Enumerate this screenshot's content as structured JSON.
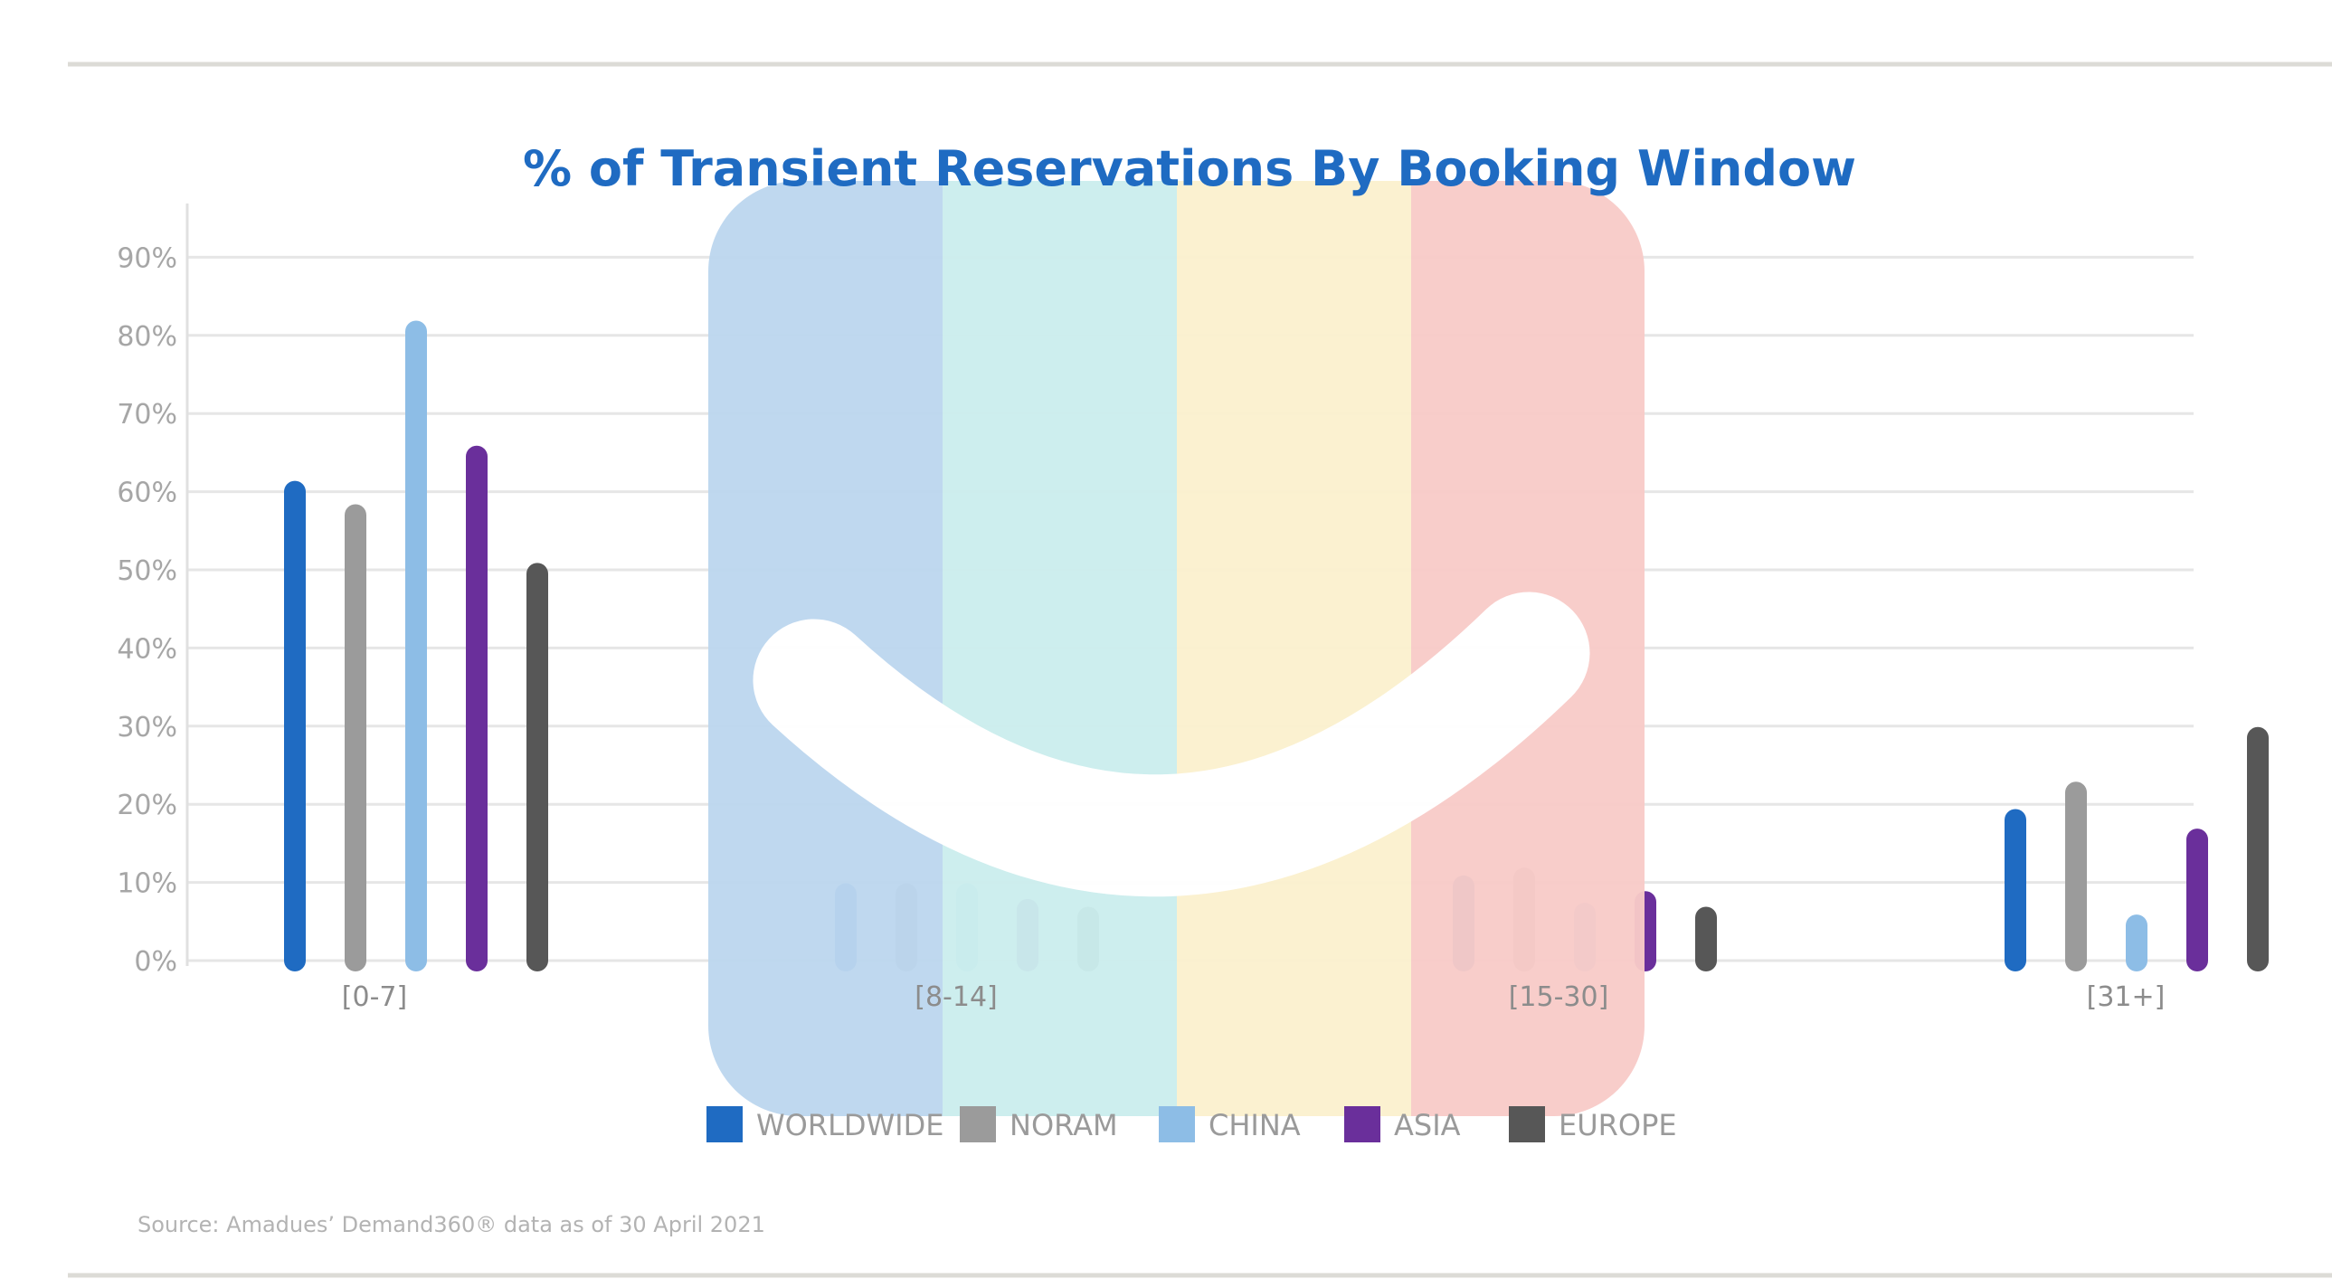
{
  "chart_data": {
    "type": "bar",
    "title": "% of Transient Reservations By Booking Window",
    "xlabel": "",
    "ylabel": "",
    "ylim": [
      0,
      95
    ],
    "y_ticks": [
      "0%",
      "10%",
      "20%",
      "30%",
      "40%",
      "50%",
      "60%",
      "70%",
      "80%",
      "90%"
    ],
    "categories": [
      "[0-7]",
      "[8-14]",
      "[15-30]",
      "[31+]"
    ],
    "series": [
      {
        "name": "WORLDWIDE",
        "color": "#1f6bc2",
        "values": [
          60,
          8.5,
          9.5,
          18
        ]
      },
      {
        "name": "NORAM",
        "color": "#9b9b9b",
        "values": [
          57,
          8.5,
          10.5,
          21.5
        ]
      },
      {
        "name": "CHINA",
        "color": "#8dbde6",
        "values": [
          80.5,
          8.5,
          6,
          4.5
        ]
      },
      {
        "name": "ASIA",
        "color": "#6a2f9b",
        "values": [
          64.5,
          6.5,
          7.5,
          15.5
        ]
      },
      {
        "name": "EUROPE",
        "color": "#575757",
        "values": [
          49.5,
          5.5,
          5.5,
          28.5
        ]
      }
    ],
    "grid": true,
    "legend_position": "bottom",
    "title_color": "#1f6bc2",
    "source": "Source: Amadues’ Demand360® data as of 30 April 2021"
  },
  "watermark": {
    "icon": "smiley-logo-icon",
    "colors": [
      "#bdd7ef",
      "#cceeee",
      "#fbf1cf",
      "#f8cbc8"
    ]
  }
}
